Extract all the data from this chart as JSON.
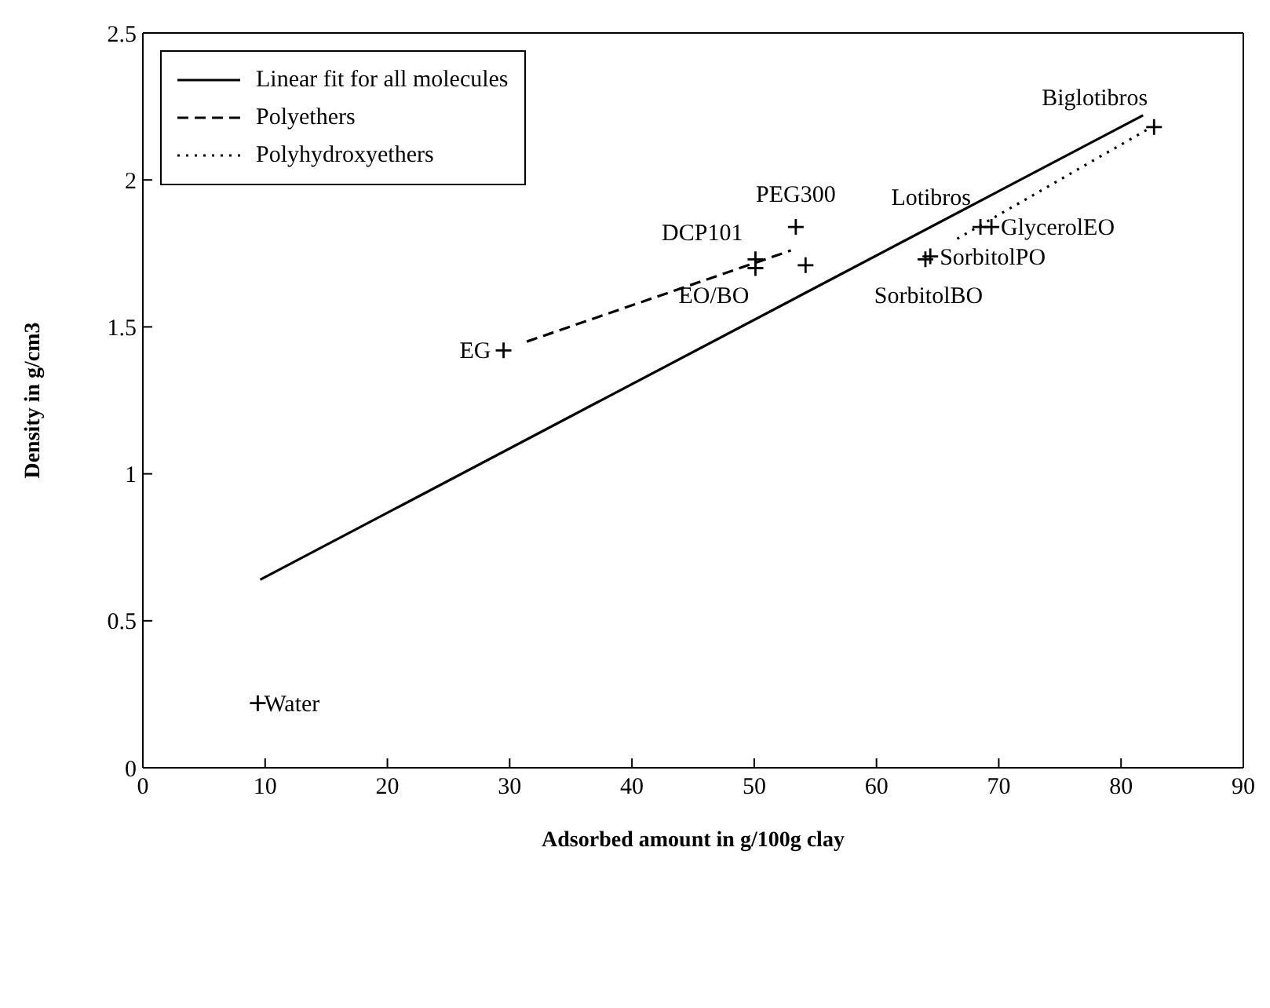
{
  "chart_data": {
    "type": "scatter",
    "xlabel": "Adsorbed amount in g/100g clay",
    "ylabel": "Density in g/cm3",
    "xlim": [
      0,
      90
    ],
    "xticks": [
      0,
      10,
      20,
      30,
      40,
      50,
      60,
      70,
      80,
      90
    ],
    "ylim": [
      0,
      2.5
    ],
    "yticks": [
      0,
      0.5,
      1,
      1.5,
      2,
      2.5
    ],
    "legend": "top left",
    "series": [
      {
        "type": "line",
        "name": "Linear fit for all molecules",
        "color": "#000000",
        "line_style": "solid",
        "marker": "none",
        "x": [
          9.6,
          81.8
        ],
        "values": [
          0.64,
          2.22
        ]
      },
      {
        "type": "line",
        "name": "Polyethers",
        "color": "#000000",
        "line_style": "dashed",
        "marker": "none",
        "x": [
          31.4,
          53.0
        ],
        "values": [
          1.45,
          1.76
        ]
      },
      {
        "type": "line",
        "name": "Polyhydroxyethers",
        "color": "#000000",
        "line_style": "dotted",
        "marker": "none",
        "x": [
          66.6,
          82.5
        ],
        "values": [
          1.8,
          2.18
        ]
      },
      {
        "color": "#000000",
        "marker": "cross",
        "x": [
          9.4,
          29.5,
          50.1,
          53.4,
          50.1,
          54.2,
          68.5,
          69.4,
          64.4,
          64.0,
          82.7
        ],
        "values": [
          0.22,
          1.42,
          1.73,
          1.84,
          1.7,
          1.71,
          1.84,
          1.84,
          1.74,
          1.73,
          2.18
        ]
      }
    ],
    "annotations": [
      {
        "text": "Water",
        "x": 9.4,
        "y": 0.22
      },
      {
        "text": "EG",
        "x": 29.5,
        "y": 1.42
      },
      {
        "text": "DCP101",
        "x": 50.1,
        "y": 1.73
      },
      {
        "text": "PEG300",
        "x": 53.4,
        "y": 1.84
      },
      {
        "text": "EO/BO",
        "x": 50.1,
        "y": 1.7
      },
      {
        "text": "Lotibros",
        "x": 68.5,
        "y": 1.84
      },
      {
        "text": "GlycerolEO",
        "x": 69.4,
        "y": 1.84
      },
      {
        "text": "SorbitolPO",
        "x": 64.4,
        "y": 1.74
      },
      {
        "text": "SorbitolBO",
        "x": 64.0,
        "y": 1.73
      },
      {
        "text": "Biglotibros",
        "x": 82.7,
        "y": 2.18
      }
    ]
  }
}
